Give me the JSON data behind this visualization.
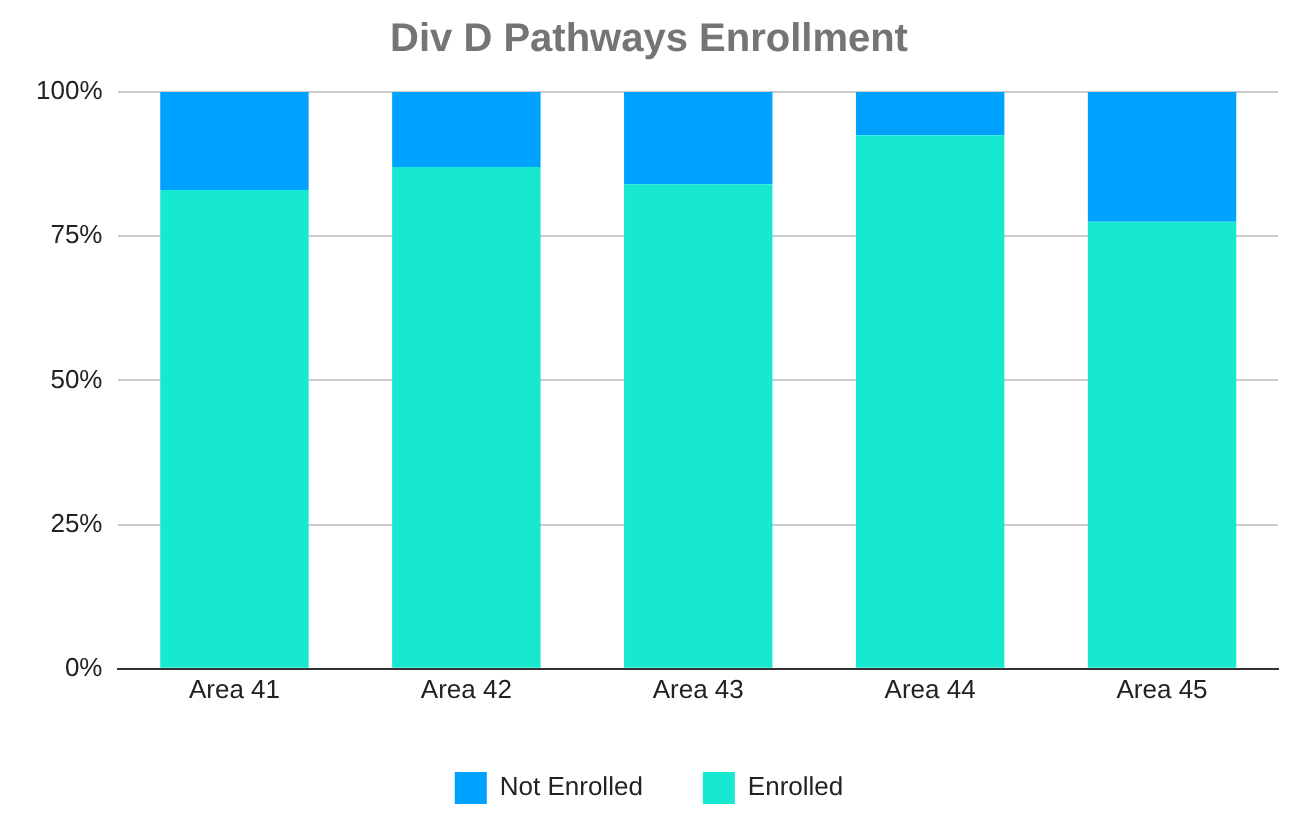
{
  "chart_data": {
    "type": "bar",
    "title": "Div D Pathways Enrollment",
    "stacked": true,
    "categories": [
      "Area 41",
      "Area 42",
      "Area 43",
      "Area 44",
      "Area 45"
    ],
    "series": [
      {
        "name": "Enrolled",
        "color": "#17e8d0",
        "values": [
          83,
          87,
          84,
          92.5,
          77.5
        ]
      },
      {
        "name": "Not Enrolled",
        "color": "#00a2ff",
        "values": [
          17,
          13,
          16,
          7.5,
          22.5
        ]
      }
    ],
    "ylim": [
      0,
      100
    ],
    "yticks": [
      {
        "value": 0,
        "label": "0%"
      },
      {
        "value": 25,
        "label": "25%"
      },
      {
        "value": 50,
        "label": "50%"
      },
      {
        "value": 75,
        "label": "75%"
      },
      {
        "value": 100,
        "label": "100%"
      }
    ],
    "grid": "y",
    "legend": "bottom"
  }
}
